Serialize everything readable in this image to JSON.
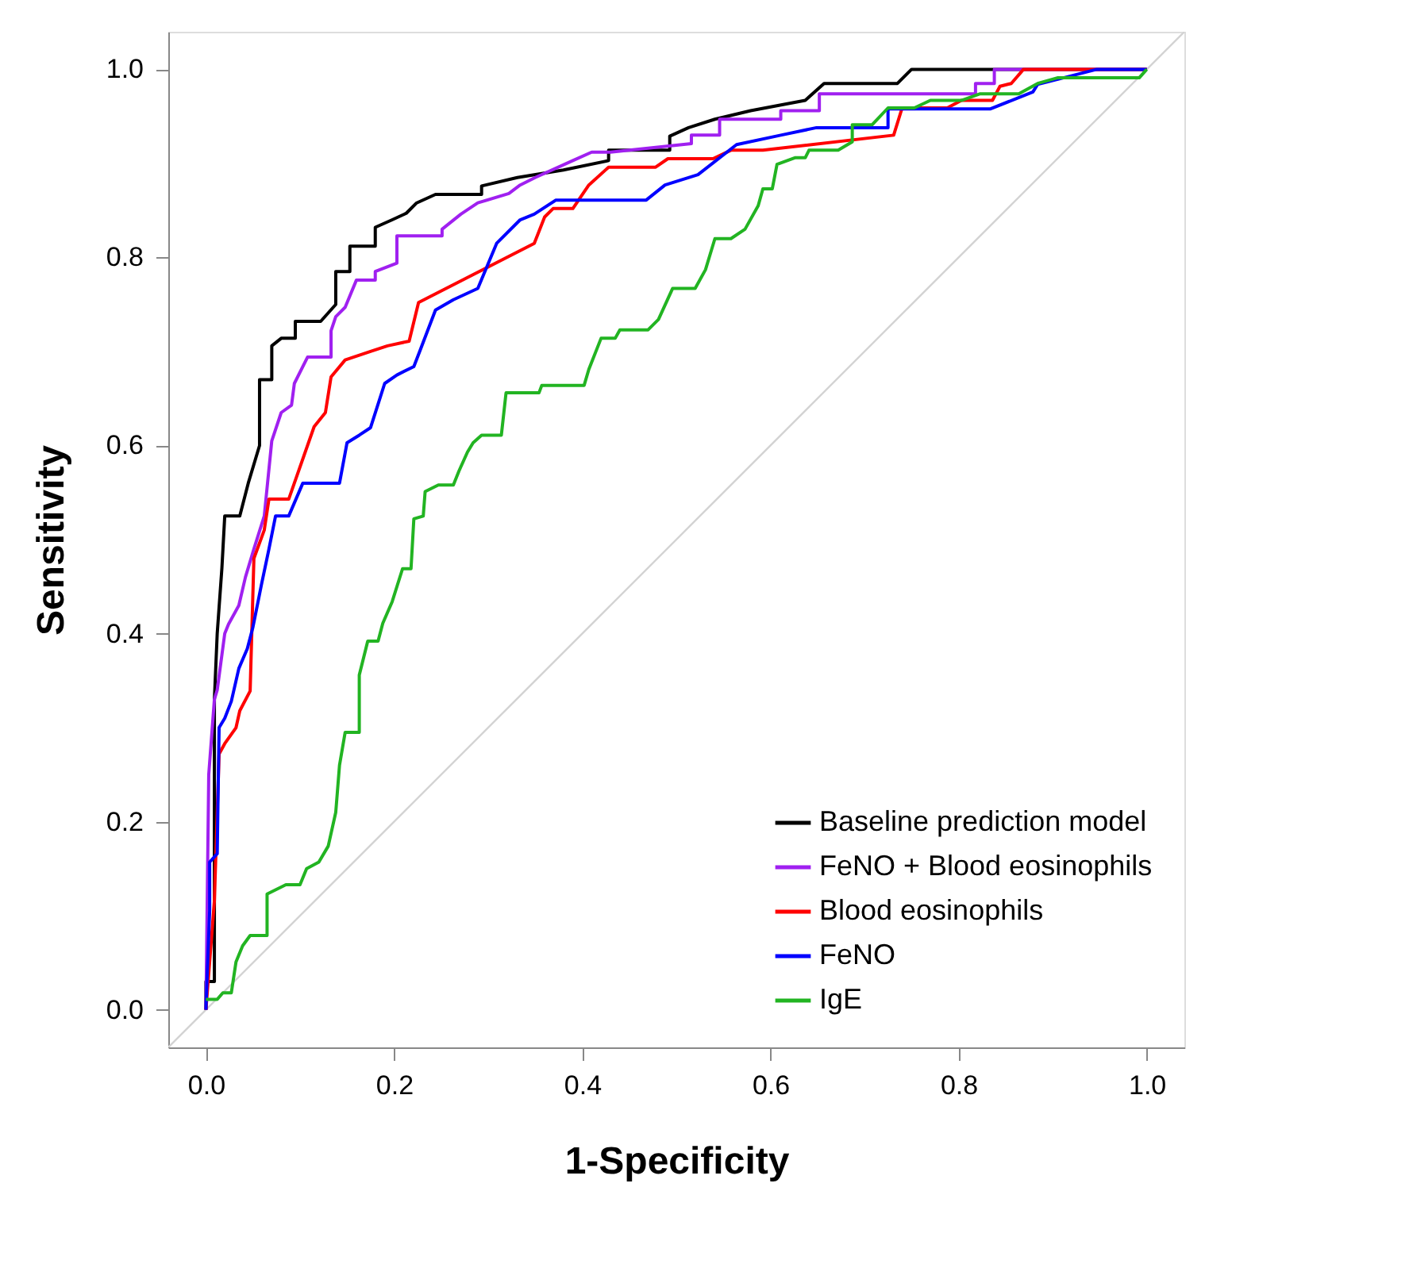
{
  "chart_data": {
    "type": "line",
    "xlabel": "1-Specificity",
    "ylabel": "Sensitivity",
    "xlim": [
      -0.04,
      1.04
    ],
    "ylim": [
      -0.04,
      1.04
    ],
    "xticks": [
      {
        "value": 0,
        "label": "0.0"
      },
      0.2,
      0.4,
      0.6,
      0.8,
      {
        "value": 1,
        "label": "1.0"
      }
    ],
    "yticks": [
      {
        "value": 0,
        "label": "0.0"
      },
      0.2,
      0.4,
      0.6,
      0.8,
      {
        "value": 1,
        "label": "1.0"
      }
    ],
    "grid": false,
    "legend": "bottom right",
    "marker": "none",
    "line_style": "solid",
    "series": [
      {
        "color": "#d3d3d3",
        "x": [
          -0.04,
          1.04
        ],
        "values": [
          -0.04,
          1.04
        ]
      },
      {
        "name": "Baseline prediction model",
        "color": "#000000",
        "x": [
          0,
          0,
          0.009,
          0.009,
          0.012,
          0.017,
          0.02,
          0.036,
          0.045,
          0.057,
          0.057,
          0.07,
          0.07,
          0.08,
          0.095,
          0.095,
          0.122,
          0.138,
          0.138,
          0.153,
          0.153,
          0.18,
          0.18,
          0.198,
          0.213,
          0.224,
          0.244,
          0.293,
          0.293,
          0.331,
          0.38,
          0.428,
          0.428,
          0.493,
          0.493,
          0.513,
          0.541,
          0.579,
          0.637,
          0.657,
          0.735,
          0.75,
          1
        ],
        "values": [
          0,
          0.03,
          0.03,
          0.33,
          0.4,
          0.47,
          0.525,
          0.525,
          0.56,
          0.6,
          0.67,
          0.67,
          0.706,
          0.714,
          0.714,
          0.732,
          0.732,
          0.75,
          0.785,
          0.785,
          0.812,
          0.812,
          0.832,
          0.84,
          0.847,
          0.858,
          0.867,
          0.867,
          0.876,
          0.885,
          0.893,
          0.903,
          0.914,
          0.914,
          0.929,
          0.938,
          0.947,
          0.956,
          0.967,
          0.985,
          0.985,
          1,
          1
        ]
      },
      {
        "name": "FeNO + Blood eosinophils",
        "color": "#a020f0",
        "x": [
          0,
          0.003,
          0.009,
          0.012,
          0.02,
          0.024,
          0.035,
          0.042,
          0.051,
          0.062,
          0.07,
          0.08,
          0.091,
          0.094,
          0.108,
          0.133,
          0.133,
          0.138,
          0.148,
          0.16,
          0.18,
          0.18,
          0.203,
          0.203,
          0.251,
          0.251,
          0.271,
          0.289,
          0.322,
          0.334,
          0.35,
          0.39,
          0.41,
          0.43,
          0.516,
          0.516,
          0.546,
          0.546,
          0.611,
          0.611,
          0.652,
          0.652,
          0.818,
          0.818,
          0.838,
          0.838,
          1
        ],
        "values": [
          0,
          0.25,
          0.33,
          0.34,
          0.4,
          0.41,
          0.43,
          0.46,
          0.49,
          0.525,
          0.605,
          0.635,
          0.643,
          0.666,
          0.694,
          0.694,
          0.722,
          0.737,
          0.747,
          0.776,
          0.776,
          0.785,
          0.794,
          0.823,
          0.823,
          0.83,
          0.846,
          0.858,
          0.868,
          0.877,
          0.885,
          0.903,
          0.912,
          0.912,
          0.921,
          0.93,
          0.93,
          0.947,
          0.947,
          0.956,
          0.956,
          0.974,
          0.974,
          0.985,
          0.985,
          1,
          1
        ]
      },
      {
        "name": "Blood eosinophils",
        "color": "#ff0000",
        "x": [
          0,
          0.009,
          0.014,
          0.02,
          0.032,
          0.036,
          0.047,
          0.051,
          0.062,
          0.067,
          0.088,
          0.115,
          0.127,
          0.133,
          0.148,
          0.175,
          0.193,
          0.216,
          0.226,
          0.349,
          0.36,
          0.369,
          0.39,
          0.407,
          0.428,
          0.478,
          0.491,
          0.539,
          0.558,
          0.592,
          0.731,
          0.74,
          0.788,
          0.803,
          0.836,
          0.844,
          0.856,
          0.869,
          1
        ],
        "values": [
          0,
          0.116,
          0.272,
          0.283,
          0.3,
          0.318,
          0.339,
          0.48,
          0.51,
          0.543,
          0.543,
          0.62,
          0.635,
          0.673,
          0.691,
          0.7,
          0.706,
          0.711,
          0.752,
          0.815,
          0.843,
          0.852,
          0.852,
          0.877,
          0.896,
          0.896,
          0.905,
          0.905,
          0.914,
          0.914,
          0.93,
          0.959,
          0.959,
          0.967,
          0.967,
          0.982,
          0.985,
          1,
          1
        ]
      },
      {
        "name": "FeNO",
        "color": "#0000ff",
        "x": [
          0,
          0.004,
          0.004,
          0.012,
          0.014,
          0.02,
          0.027,
          0.035,
          0.044,
          0.05,
          0.059,
          0.067,
          0.074,
          0.074,
          0.088,
          0.103,
          0.142,
          0.15,
          0.163,
          0.175,
          0.19,
          0.203,
          0.221,
          0.228,
          0.244,
          0.263,
          0.289,
          0.309,
          0.334,
          0.349,
          0.372,
          0.468,
          0.488,
          0.523,
          0.564,
          0.611,
          0.649,
          0.725,
          0.725,
          0.834,
          0.879,
          0.884,
          0.947,
          1
        ],
        "values": [
          0,
          0.106,
          0.157,
          0.166,
          0.3,
          0.31,
          0.328,
          0.363,
          0.384,
          0.407,
          0.452,
          0.49,
          0.525,
          0.525,
          0.525,
          0.56,
          0.56,
          0.603,
          0.611,
          0.619,
          0.666,
          0.675,
          0.684,
          0.702,
          0.744,
          0.755,
          0.767,
          0.815,
          0.84,
          0.846,
          0.861,
          0.861,
          0.877,
          0.888,
          0.92,
          0.93,
          0.938,
          0.938,
          0.958,
          0.958,
          0.976,
          0.984,
          1,
          1
        ]
      },
      {
        "name": "IgE",
        "color": "#22b422",
        "x": [
          0,
          0.012,
          0.018,
          0.027,
          0.032,
          0.039,
          0.047,
          0.065,
          0.065,
          0.085,
          0.1,
          0.107,
          0.12,
          0.13,
          0.138,
          0.142,
          0.148,
          0.163,
          0.163,
          0.172,
          0.183,
          0.188,
          0.198,
          0.209,
          0.218,
          0.221,
          0.231,
          0.233,
          0.247,
          0.263,
          0.269,
          0.278,
          0.284,
          0.293,
          0.314,
          0.319,
          0.354,
          0.357,
          0.402,
          0.407,
          0.42,
          0.435,
          0.44,
          0.47,
          0.481,
          0.496,
          0.52,
          0.531,
          0.541,
          0.558,
          0.573,
          0.587,
          0.592,
          0.602,
          0.607,
          0.626,
          0.637,
          0.641,
          0.672,
          0.687,
          0.687,
          0.708,
          0.725,
          0.753,
          0.77,
          0.803,
          0.823,
          0.864,
          0.884,
          0.905,
          0.992,
          1
        ],
        "values": [
          0.011,
          0.011,
          0.018,
          0.018,
          0.051,
          0.068,
          0.079,
          0.079,
          0.123,
          0.133,
          0.133,
          0.15,
          0.157,
          0.174,
          0.21,
          0.26,
          0.295,
          0.295,
          0.356,
          0.392,
          0.392,
          0.411,
          0.434,
          0.469,
          0.469,
          0.522,
          0.525,
          0.551,
          0.558,
          0.558,
          0.573,
          0.593,
          0.603,
          0.611,
          0.611,
          0.656,
          0.656,
          0.664,
          0.664,
          0.681,
          0.714,
          0.714,
          0.723,
          0.723,
          0.734,
          0.767,
          0.767,
          0.787,
          0.82,
          0.82,
          0.83,
          0.855,
          0.873,
          0.873,
          0.899,
          0.906,
          0.906,
          0.914,
          0.914,
          0.923,
          0.941,
          0.941,
          0.959,
          0.959,
          0.967,
          0.967,
          0.974,
          0.974,
          0.985,
          0.991,
          0.991,
          1
        ]
      }
    ]
  }
}
